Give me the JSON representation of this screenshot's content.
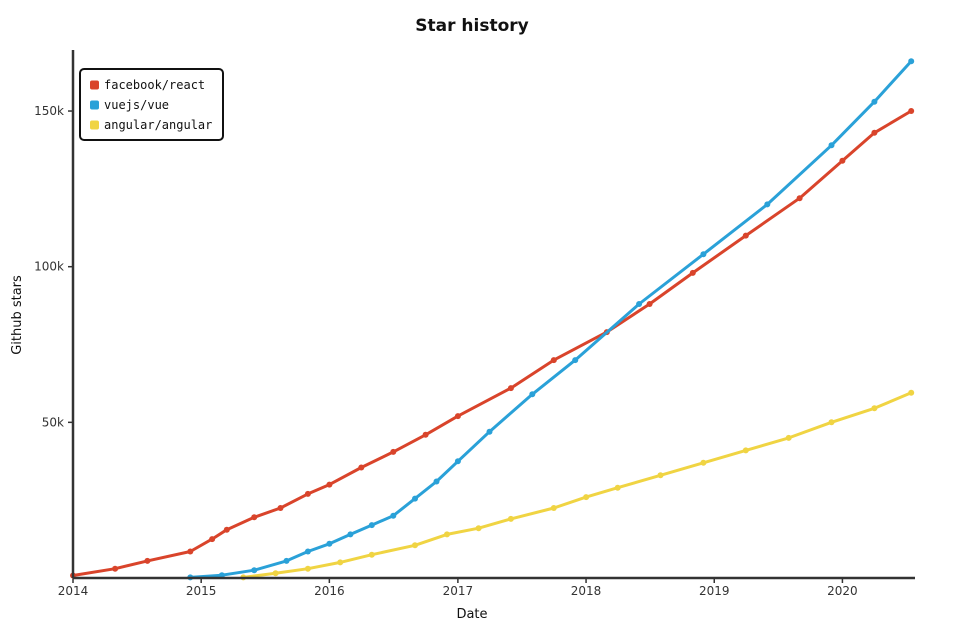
{
  "chart_data": {
    "type": "line",
    "title": "Star history",
    "xlabel": "Date",
    "ylabel": "Github stars",
    "xlim": [
      "2014-01-01",
      "2020-07-20"
    ],
    "ylim": [
      0,
      168000
    ],
    "x_ticks": [
      {
        "label": "2014",
        "date": "2014-01-01"
      },
      {
        "label": "2015",
        "date": "2015-01-01"
      },
      {
        "label": "2016",
        "date": "2016-01-01"
      },
      {
        "label": "2017",
        "date": "2017-01-01"
      },
      {
        "label": "2018",
        "date": "2018-01-01"
      },
      {
        "label": "2019",
        "date": "2019-01-01"
      },
      {
        "label": "2020",
        "date": "2020-01-01"
      }
    ],
    "y_ticks": [
      {
        "label": "50k",
        "value": 50000
      },
      {
        "label": "100k",
        "value": 100000
      },
      {
        "label": "150k",
        "value": 150000
      }
    ],
    "legend": {
      "placement": "top-left"
    },
    "grid": false,
    "series": [
      {
        "name": "facebook/react",
        "color": "#d9442b",
        "points": [
          [
            "2014-01-01",
            800
          ],
          [
            "2014-05-01",
            3000
          ],
          [
            "2014-08-01",
            5500
          ],
          [
            "2014-12-01",
            8500
          ],
          [
            "2015-02-01",
            12500
          ],
          [
            "2015-03-15",
            15500
          ],
          [
            "2015-06-01",
            19500
          ],
          [
            "2015-08-15",
            22500
          ],
          [
            "2015-11-01",
            27000
          ],
          [
            "2016-01-01",
            30000
          ],
          [
            "2016-04-01",
            35500
          ],
          [
            "2016-07-01",
            40500
          ],
          [
            "2016-10-01",
            46000
          ],
          [
            "2017-01-01",
            52000
          ],
          [
            "2017-06-01",
            61000
          ],
          [
            "2017-10-01",
            70000
          ],
          [
            "2018-03-01",
            79000
          ],
          [
            "2018-07-01",
            88000
          ],
          [
            "2018-11-01",
            98000
          ],
          [
            "2019-04-01",
            110000
          ],
          [
            "2019-09-01",
            122000
          ],
          [
            "2020-01-01",
            134000
          ],
          [
            "2020-04-01",
            143000
          ],
          [
            "2020-07-15",
            150000
          ]
        ]
      },
      {
        "name": "vuejs/vue",
        "color": "#2aa1d8",
        "points": [
          [
            "2014-12-01",
            200
          ],
          [
            "2015-03-01",
            900
          ],
          [
            "2015-06-01",
            2500
          ],
          [
            "2015-09-01",
            5500
          ],
          [
            "2015-11-01",
            8500
          ],
          [
            "2016-01-01",
            11000
          ],
          [
            "2016-03-01",
            14000
          ],
          [
            "2016-05-01",
            17000
          ],
          [
            "2016-07-01",
            20000
          ],
          [
            "2016-09-01",
            25500
          ],
          [
            "2016-11-01",
            31000
          ],
          [
            "2017-01-01",
            37500
          ],
          [
            "2017-04-01",
            47000
          ],
          [
            "2017-08-01",
            59000
          ],
          [
            "2017-12-01",
            70000
          ],
          [
            "2018-06-01",
            88000
          ],
          [
            "2018-12-01",
            104000
          ],
          [
            "2019-06-01",
            120000
          ],
          [
            "2019-12-01",
            139000
          ],
          [
            "2020-04-01",
            153000
          ],
          [
            "2020-07-15",
            166000
          ]
        ]
      },
      {
        "name": "angular/angular",
        "color": "#f0d443",
        "points": [
          [
            "2015-05-01",
            200
          ],
          [
            "2015-08-01",
            1500
          ],
          [
            "2015-11-01",
            3000
          ],
          [
            "2016-02-01",
            5000
          ],
          [
            "2016-05-01",
            7500
          ],
          [
            "2016-09-01",
            10500
          ],
          [
            "2016-12-01",
            14000
          ],
          [
            "2017-03-01",
            16000
          ],
          [
            "2017-06-01",
            19000
          ],
          [
            "2017-10-01",
            22500
          ],
          [
            "2018-01-01",
            26000
          ],
          [
            "2018-04-01",
            29000
          ],
          [
            "2018-08-01",
            33000
          ],
          [
            "2018-12-01",
            37000
          ],
          [
            "2019-04-01",
            41000
          ],
          [
            "2019-08-01",
            45000
          ],
          [
            "2019-12-01",
            50000
          ],
          [
            "2020-04-01",
            54500
          ],
          [
            "2020-07-15",
            59500
          ]
        ]
      }
    ]
  }
}
